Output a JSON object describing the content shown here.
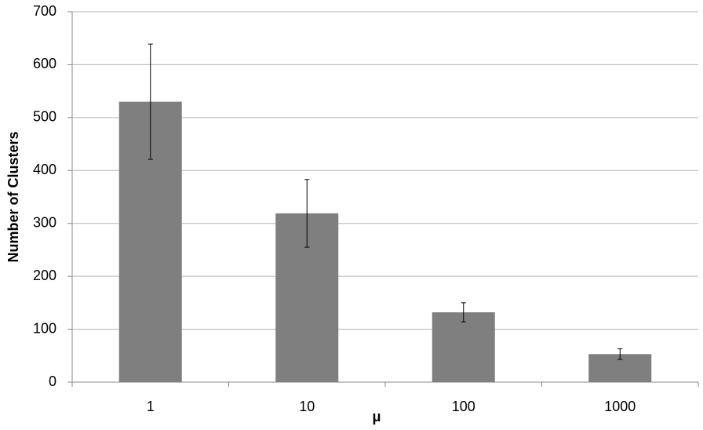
{
  "chart_data": {
    "type": "bar",
    "x_label": "μ",
    "y_label": "Number of Clusters",
    "categories": [
      "1",
      "10",
      "100",
      "1000"
    ],
    "values": [
      530,
      319,
      132,
      53
    ],
    "errors": [
      109,
      64,
      18,
      10
    ],
    "color": "#7f7f7f",
    "ylim": [
      0,
      700
    ],
    "yticks": [
      0,
      100,
      200,
      300,
      400,
      500,
      600,
      700
    ],
    "grid": true
  }
}
